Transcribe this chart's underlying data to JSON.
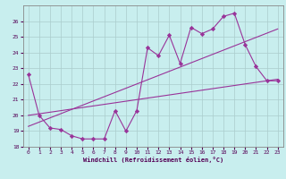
{
  "xlabel": "Windchill (Refroidissement éolien,°C)",
  "bg_color": "#c8eeee",
  "line_color": "#993399",
  "grid_color": "#aacccc",
  "xlim": [
    -0.5,
    23.5
  ],
  "ylim": [
    18,
    27
  ],
  "xticks": [
    0,
    1,
    2,
    3,
    4,
    5,
    6,
    7,
    8,
    9,
    10,
    11,
    12,
    13,
    14,
    15,
    16,
    17,
    18,
    19,
    20,
    21,
    22,
    23
  ],
  "yticks": [
    18,
    19,
    20,
    21,
    22,
    23,
    24,
    25,
    26
  ],
  "line1_x": [
    0,
    1,
    2,
    3,
    4,
    5,
    6,
    7,
    8,
    9,
    10,
    11,
    12,
    13,
    14,
    15,
    16,
    17,
    18,
    19,
    20,
    21,
    22,
    23
  ],
  "line1_y": [
    22.6,
    20.0,
    19.2,
    19.1,
    18.7,
    18.5,
    18.5,
    18.5,
    20.3,
    19.0,
    20.3,
    24.3,
    23.8,
    25.1,
    23.3,
    25.6,
    25.2,
    25.5,
    26.3,
    26.5,
    24.5,
    23.1,
    22.2,
    22.2
  ],
  "line2_x": [
    0,
    23
  ],
  "line2_y": [
    20.0,
    22.3
  ],
  "line3_x": [
    0,
    23
  ],
  "line3_y": [
    19.3,
    25.5
  ]
}
